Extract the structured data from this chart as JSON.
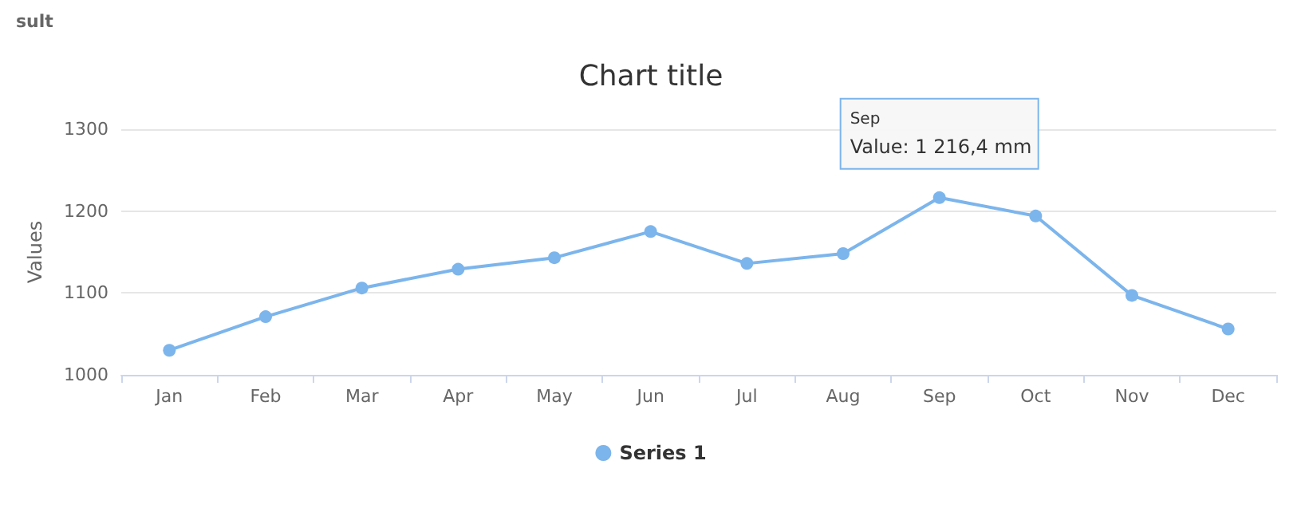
{
  "chart_data": {
    "type": "line",
    "title": "Chart title",
    "ylabel": "Values",
    "categories": [
      "Jan",
      "Feb",
      "Mar",
      "Apr",
      "May",
      "Jun",
      "Jul",
      "Aug",
      "Sep",
      "Oct",
      "Nov",
      "Dec"
    ],
    "series": [
      {
        "name": "Series 1",
        "color": "#7cb5ec",
        "values": [
          1030,
          1071,
          1106,
          1129,
          1143,
          1175,
          1136,
          1148,
          1216.4,
          1194,
          1097,
          1056
        ]
      }
    ],
    "ylim": [
      1000,
      1300
    ],
    "yticks": [
      1000,
      1100,
      1200,
      1300
    ],
    "grid": "y",
    "legend": "bottom",
    "marker": "circle",
    "line_style": "solid",
    "annotations": [
      "sult",
      "Sep",
      {
        "text": "Value: 1 216,4 mm",
        "x": "Sep",
        "y": 1216.4
      }
    ]
  }
}
